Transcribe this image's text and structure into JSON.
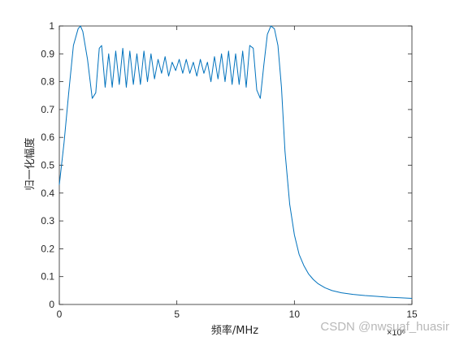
{
  "chart_data": {
    "type": "line",
    "title": "",
    "xlabel": "频率/MHz",
    "ylabel": "归一化幅度",
    "x_exponent_label": "×10⁶",
    "xlim": [
      0,
      15
    ],
    "ylim": [
      0,
      1
    ],
    "xticks": [
      0,
      5,
      10,
      15
    ],
    "yticks": [
      0,
      0.1,
      0.2,
      0.3,
      0.4,
      0.5,
      0.6,
      0.7,
      0.8,
      0.9,
      1
    ],
    "xtick_labels": [
      "0",
      "5",
      "10",
      "15"
    ],
    "ytick_labels": [
      "0",
      "0.1",
      "0.2",
      "0.3",
      "0.4",
      "0.5",
      "0.6",
      "0.7",
      "0.8",
      "0.9",
      "1"
    ],
    "grid": false,
    "series": [
      {
        "color": "#0072BD",
        "x": [
          0,
          0.2,
          0.4,
          0.6,
          0.8,
          0.9,
          1.0,
          1.2,
          1.4,
          1.55,
          1.7,
          1.8,
          1.95,
          2.1,
          2.25,
          2.4,
          2.55,
          2.7,
          2.85,
          3.0,
          3.15,
          3.3,
          3.45,
          3.6,
          3.75,
          3.9,
          4.05,
          4.2,
          4.35,
          4.5,
          4.65,
          4.8,
          4.95,
          5.1,
          5.25,
          5.4,
          5.55,
          5.7,
          5.85,
          6.0,
          6.15,
          6.3,
          6.45,
          6.6,
          6.75,
          6.9,
          7.05,
          7.2,
          7.35,
          7.5,
          7.65,
          7.8,
          7.95,
          8.1,
          8.25,
          8.4,
          8.55,
          8.7,
          8.85,
          9.0,
          9.15,
          9.3,
          9.45,
          9.6,
          9.8,
          10.0,
          10.2,
          10.4,
          10.6,
          10.8,
          11.0,
          11.3,
          11.6,
          12.0,
          12.5,
          13.0,
          13.5,
          14.0,
          14.5,
          15.0
        ],
        "y": [
          0.43,
          0.58,
          0.76,
          0.93,
          0.99,
          1.0,
          0.98,
          0.88,
          0.74,
          0.76,
          0.92,
          0.93,
          0.78,
          0.9,
          0.78,
          0.91,
          0.79,
          0.92,
          0.78,
          0.91,
          0.79,
          0.9,
          0.79,
          0.91,
          0.8,
          0.9,
          0.81,
          0.88,
          0.83,
          0.89,
          0.82,
          0.87,
          0.84,
          0.88,
          0.83,
          0.88,
          0.83,
          0.87,
          0.82,
          0.88,
          0.83,
          0.87,
          0.8,
          0.89,
          0.81,
          0.9,
          0.8,
          0.91,
          0.79,
          0.9,
          0.79,
          0.91,
          0.78,
          0.93,
          0.92,
          0.77,
          0.74,
          0.86,
          0.97,
          1.0,
          0.99,
          0.93,
          0.78,
          0.55,
          0.36,
          0.25,
          0.18,
          0.14,
          0.11,
          0.09,
          0.075,
          0.06,
          0.05,
          0.042,
          0.036,
          0.032,
          0.029,
          0.026,
          0.024,
          0.022
        ]
      }
    ]
  },
  "watermark": "CSDN @nwsuaf_huasir"
}
